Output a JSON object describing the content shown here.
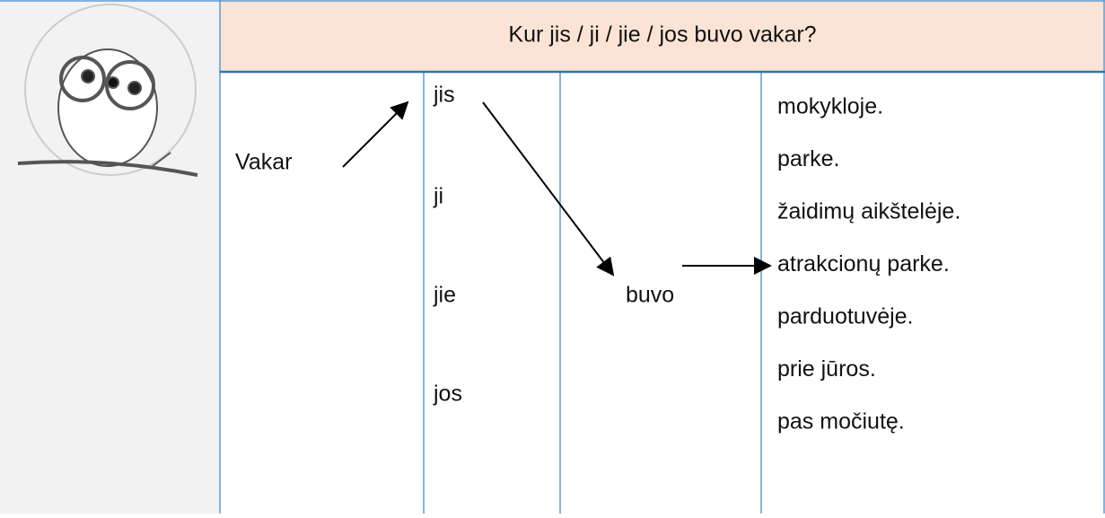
{
  "header": {
    "title": "Kur jis / ji / jie / jos buvo vakar?"
  },
  "table": {
    "time": "Vakar",
    "pronouns": [
      "jis",
      "ji",
      "jie",
      "jos"
    ],
    "verb": "buvo",
    "places": [
      "mokykloje.",
      "parke.",
      "žaidimų aikštelėje.",
      "atrakcionų parke.",
      "parduotuvėje.",
      "prie jūros.",
      "pas močiutę."
    ]
  }
}
